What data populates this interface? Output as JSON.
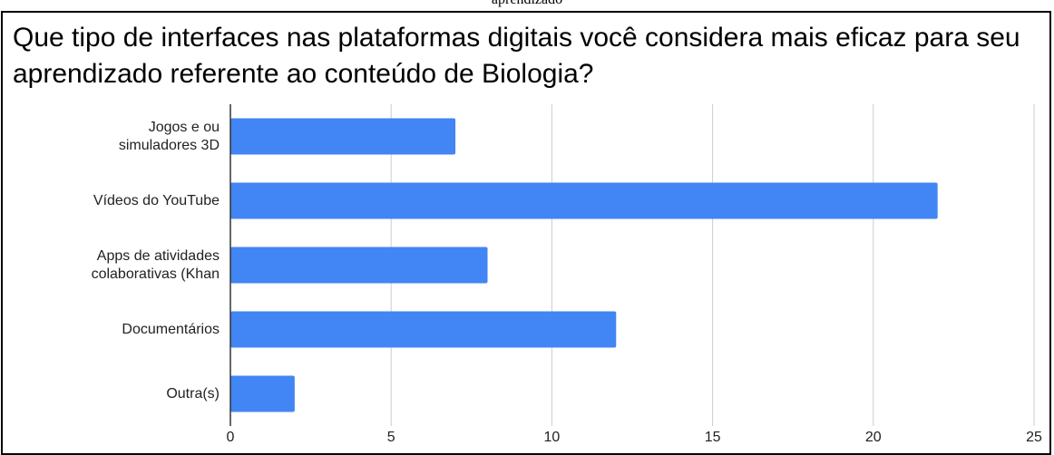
{
  "caption": "aprendizado",
  "chart_data": {
    "type": "hbar",
    "title": "Que tipo de interfaces nas plataformas digitais você considera mais eficaz para seu aprendizado referente ao conteúdo de Biologia?",
    "categories": [
      "Jogos e ou\nsimuladores 3D",
      "Vídeos do YouTube",
      "Apps de atividades\ncolaborativas (Khan",
      "Documentários",
      "Outra(s)"
    ],
    "values": [
      7,
      22,
      8,
      12,
      2
    ],
    "color": "#4285f4",
    "xlim": [
      0,
      25
    ],
    "xticks": [
      0,
      5,
      10,
      15,
      20,
      25
    ],
    "grid": true
  }
}
